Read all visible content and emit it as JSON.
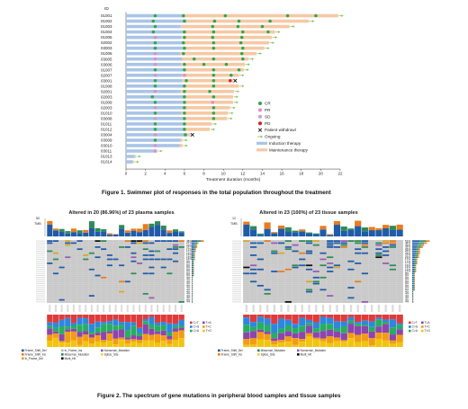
{
  "captions": {
    "fig1": "Figure 1.  Swimmer plot of responses in the total population throughout the treatment",
    "fig2": "Figure 2.  The spectrum of gene mutations in peripheral blood samples and tissue samples"
  },
  "chart_data": [
    {
      "type": "swimmer",
      "id_header": "ID",
      "xlabel": "Treatment duration (months)",
      "xlim": [
        0,
        22
      ],
      "xticks": [
        0,
        2,
        4,
        6,
        8,
        10,
        12,
        14,
        16,
        18,
        20,
        22
      ],
      "colors": {
        "induction": "#a9c4e6",
        "maintenance": "#f6c9a4",
        "CR": "#2ea84c",
        "PR": "#e28ad0",
        "SD": "#c9a0d8",
        "PD": "#d8201f",
        "withdrawal": "#111111",
        "ongoing": "#7fc04f"
      },
      "legend": [
        {
          "key": "CR",
          "label": "CR",
          "marker": "dot-CR"
        },
        {
          "key": "PR",
          "label": "PR",
          "marker": "dot-PR"
        },
        {
          "key": "SD",
          "label": "SD",
          "marker": "dot-SD"
        },
        {
          "key": "PD",
          "label": "PD",
          "marker": "dot-PD"
        },
        {
          "key": "withdrawal",
          "label": "Patient withdrawl",
          "marker": "x"
        },
        {
          "key": "ongoing",
          "label": "Ongoing",
          "marker": "arrow"
        },
        {
          "key": "induction",
          "label": "Induction therapy",
          "marker": "bar"
        },
        {
          "key": "maintenance",
          "label": "Maintenance therapy",
          "marker": "bar"
        }
      ],
      "patients": [
        {
          "id": "01001",
          "induction": 5.8,
          "total": 21.8,
          "events": [
            [
              3,
              "CR"
            ],
            [
              5.9,
              "CR"
            ],
            [
              10.2,
              "CR"
            ],
            [
              16.6,
              "CR"
            ],
            [
              19.5,
              "CR"
            ]
          ],
          "end": "ongoing"
        },
        {
          "id": "01002",
          "induction": 6.2,
          "total": 18.8,
          "events": [
            [
              2.8,
              "CR"
            ],
            [
              6,
              "CR"
            ],
            [
              9.1,
              "CR"
            ],
            [
              11.6,
              "CR"
            ],
            [
              14.8,
              "CR"
            ]
          ],
          "end": "ongoing"
        },
        {
          "id": "01003",
          "induction": 5.6,
          "total": 16.8,
          "events": [
            [
              3,
              "CR"
            ],
            [
              8.9,
              "CR"
            ],
            [
              11.5,
              "CR"
            ],
            [
              14,
              "CR"
            ]
          ],
          "end": "ongoing"
        },
        {
          "id": "01004",
          "induction": 5.9,
          "total": 15.3,
          "events": [
            [
              2.8,
              "CR"
            ],
            [
              6,
              "CR"
            ],
            [
              9,
              "CR"
            ],
            [
              12,
              "CR"
            ],
            [
              14.6,
              "CR"
            ]
          ],
          "end": "ongoing"
        },
        {
          "id": "01005",
          "induction": 5.7,
          "total": 15,
          "events": [
            [
              3,
              "PR"
            ],
            [
              6,
              "CR"
            ],
            [
              8.9,
              "CR"
            ],
            [
              11.9,
              "CR"
            ]
          ],
          "end": "ongoing"
        },
        {
          "id": "02002",
          "induction": 5.8,
          "total": 14.7,
          "events": [
            [
              3,
              "CR"
            ],
            [
              5.9,
              "CR"
            ],
            [
              9,
              "CR"
            ],
            [
              11.8,
              "CR"
            ]
          ],
          "end": "ongoing"
        },
        {
          "id": "03003",
          "induction": 5.9,
          "total": 14.2,
          "events": [
            [
              3,
              "CR"
            ],
            [
              6,
              "CR"
            ],
            [
              9,
              "CR"
            ],
            [
              12,
              "CR"
            ]
          ],
          "end": "ongoing"
        },
        {
          "id": "01006",
          "induction": 5.6,
          "total": 13.4,
          "events": [
            [
              3,
              "PR"
            ],
            [
              5.9,
              "CR"
            ],
            [
              11.9,
              "CR"
            ]
          ],
          "end": "ongoing"
        },
        {
          "id": "03005",
          "induction": 5.8,
          "total": 12.6,
          "events": [
            [
              3,
              "PR"
            ],
            [
              7,
              "CR"
            ],
            [
              9,
              "CR"
            ],
            [
              12,
              "CR"
            ]
          ],
          "end": "ongoing"
        },
        {
          "id": "03006",
          "induction": 5.7,
          "total": 12.2,
          "events": [
            [
              3,
              "PR"
            ],
            [
              6,
              "CR"
            ],
            [
              8,
              "CR"
            ],
            [
              10.3,
              "CR"
            ]
          ],
          "end": "ongoing"
        },
        {
          "id": "01007",
          "induction": 5.9,
          "total": 12.1,
          "events": [
            [
              3,
              "CR"
            ],
            [
              6,
              "CR"
            ],
            [
              9,
              "CR"
            ],
            [
              11.6,
              "CR"
            ]
          ],
          "end": "ongoing"
        },
        {
          "id": "02007",
          "induction": 5.8,
          "total": 11.6,
          "events": [
            [
              3,
              "PR"
            ],
            [
              6,
              "PR"
            ],
            [
              9,
              "CR"
            ],
            [
              10.8,
              "CR"
            ]
          ],
          "end": "ongoing"
        },
        {
          "id": "03001",
          "induction": 5.8,
          "total": 11,
          "events": [
            [
              3,
              "CR"
            ],
            [
              6.2,
              "CR"
            ],
            [
              9,
              "CR"
            ],
            [
              10.7,
              "PD"
            ]
          ],
          "end": "withdrawal"
        },
        {
          "id": "01008",
          "induction": 5.9,
          "total": 11.6,
          "events": [
            [
              3,
              "CR"
            ],
            [
              6,
              "CR"
            ],
            [
              9,
              "CR"
            ]
          ],
          "end": "ongoing"
        },
        {
          "id": "02001",
          "induction": 5.6,
          "total": 11.1,
          "events": [
            [
              3,
              "PR"
            ],
            [
              6,
              "CR"
            ],
            [
              8.6,
              "CR"
            ]
          ],
          "end": "ongoing"
        },
        {
          "id": "02003",
          "induction": 6.1,
          "total": 11,
          "events": [
            [
              2.7,
              "CR"
            ],
            [
              6,
              "CR"
            ],
            [
              9,
              "CR"
            ]
          ],
          "end": "ongoing"
        },
        {
          "id": "01009",
          "induction": 5.8,
          "total": 11,
          "events": [
            [
              3,
              "CR"
            ],
            [
              6,
              "CR"
            ],
            [
              8.9,
              "PR"
            ]
          ],
          "end": "ongoing"
        },
        {
          "id": "02003",
          "induction": 5.9,
          "total": 10.7,
          "events": [
            [
              3,
              "PR"
            ],
            [
              6,
              "CR"
            ],
            [
              9,
              "CR"
            ]
          ],
          "end": "ongoing"
        },
        {
          "id": "01010",
          "induction": 5.7,
          "total": 10.5,
          "events": [
            [
              3,
              "CR"
            ],
            [
              6,
              "CR"
            ],
            [
              9,
              "CR"
            ]
          ],
          "end": "ongoing"
        },
        {
          "id": "03008",
          "induction": 5.9,
          "total": 10.4,
          "events": [
            [
              3,
              "SD"
            ],
            [
              6,
              "CR"
            ],
            [
              9,
              "CR"
            ]
          ],
          "end": "ongoing"
        },
        {
          "id": "01011",
          "induction": 6,
          "total": 8.8,
          "events": [
            [
              3,
              "CR"
            ],
            [
              6,
              "CR"
            ]
          ],
          "end": "ongoing"
        },
        {
          "id": "01012",
          "induction": 6.1,
          "total": 8.6,
          "events": [
            [
              3,
              "CR"
            ],
            [
              6,
              "CR"
            ]
          ],
          "end": "ongoing"
        },
        {
          "id": "03004",
          "induction": 6.3,
          "total": 6.6,
          "events": [
            [
              3,
              "PR"
            ],
            [
              6.1,
              "CR"
            ]
          ],
          "end": "withdrawal"
        },
        {
          "id": "03009",
          "induction": 5.6,
          "total": 5.8,
          "events": [
            [
              3,
              "CR"
            ]
          ],
          "end": "ongoing"
        },
        {
          "id": "03010",
          "induction": 5.5,
          "total": 5.8,
          "events": [
            [
              3,
              "PR"
            ]
          ],
          "end": "ongoing"
        },
        {
          "id": "03011",
          "induction": 3.1,
          "total": 3.2,
          "events": [
            [
              3,
              "PR"
            ]
          ],
          "end": "ongoing"
        },
        {
          "id": "01013",
          "induction": 0.9,
          "total": 1,
          "events": [],
          "end": "ongoing"
        },
        {
          "id": "01014",
          "induction": 0.7,
          "total": 0.8,
          "events": [],
          "end": "ongoing"
        }
      ]
    },
    {
      "type": "oncoprint",
      "title": "Altered in 20 (86.96%) of 23 plasma samples",
      "tmb_label": "TMB",
      "tmb_max": "50",
      "n_samples": 23,
      "n_genes": 31,
      "pct_labels": [
        "48%",
        "27%",
        "22%",
        "22%",
        "17%",
        "17%",
        "13%",
        "13%",
        "13%",
        "13%",
        "9%",
        "9%",
        "9%",
        "9%",
        "9%",
        "9%",
        "9%",
        "9%",
        "4%",
        "4%",
        "4%",
        "4%",
        "4%",
        "4%",
        "4%",
        "4%",
        "4%",
        "4%",
        "4%",
        "4%",
        "4%"
      ],
      "mutation_legend": [
        "Frame_Shift_Del",
        "Frame_Shift_Ins",
        "In_Frame_Del",
        "In_Frame_Ins",
        "Missense_Mutation",
        "Multi_Hit",
        "Nonsense_Mutation",
        "Splice_Site"
      ],
      "titv_legend": [
        "C>T",
        "C>G",
        "C>A",
        "T>A",
        "T>C",
        "T>G"
      ]
    },
    {
      "type": "oncoprint",
      "title": "Altered in 23 (100%) of 23 tissue samples",
      "tmb_label": "TMB",
      "tmb_max": "12",
      "n_samples": 23,
      "n_genes": 31,
      "pct_labels": [
        "57%",
        "48%",
        "39%",
        "35%",
        "26%",
        "26%",
        "26%",
        "22%",
        "22%",
        "17%",
        "17%",
        "17%",
        "13%",
        "13%",
        "13%",
        "13%",
        "9%",
        "9%",
        "9%",
        "9%",
        "9%",
        "9%",
        "9%",
        "9%",
        "9%",
        "4%",
        "4%",
        "4%",
        "4%",
        "4%",
        "4%"
      ],
      "mutation_legend": [
        "Frame_Shift_Del",
        "Frame_Shift_Ins",
        "Missense_Mutation",
        "Splice_Site",
        "Nonsense_Mutation",
        "Multi_Hit"
      ],
      "titv_legend": [
        "C>T",
        "C>G",
        "C>A",
        "T>A",
        "T>C",
        "T>G"
      ]
    }
  ]
}
